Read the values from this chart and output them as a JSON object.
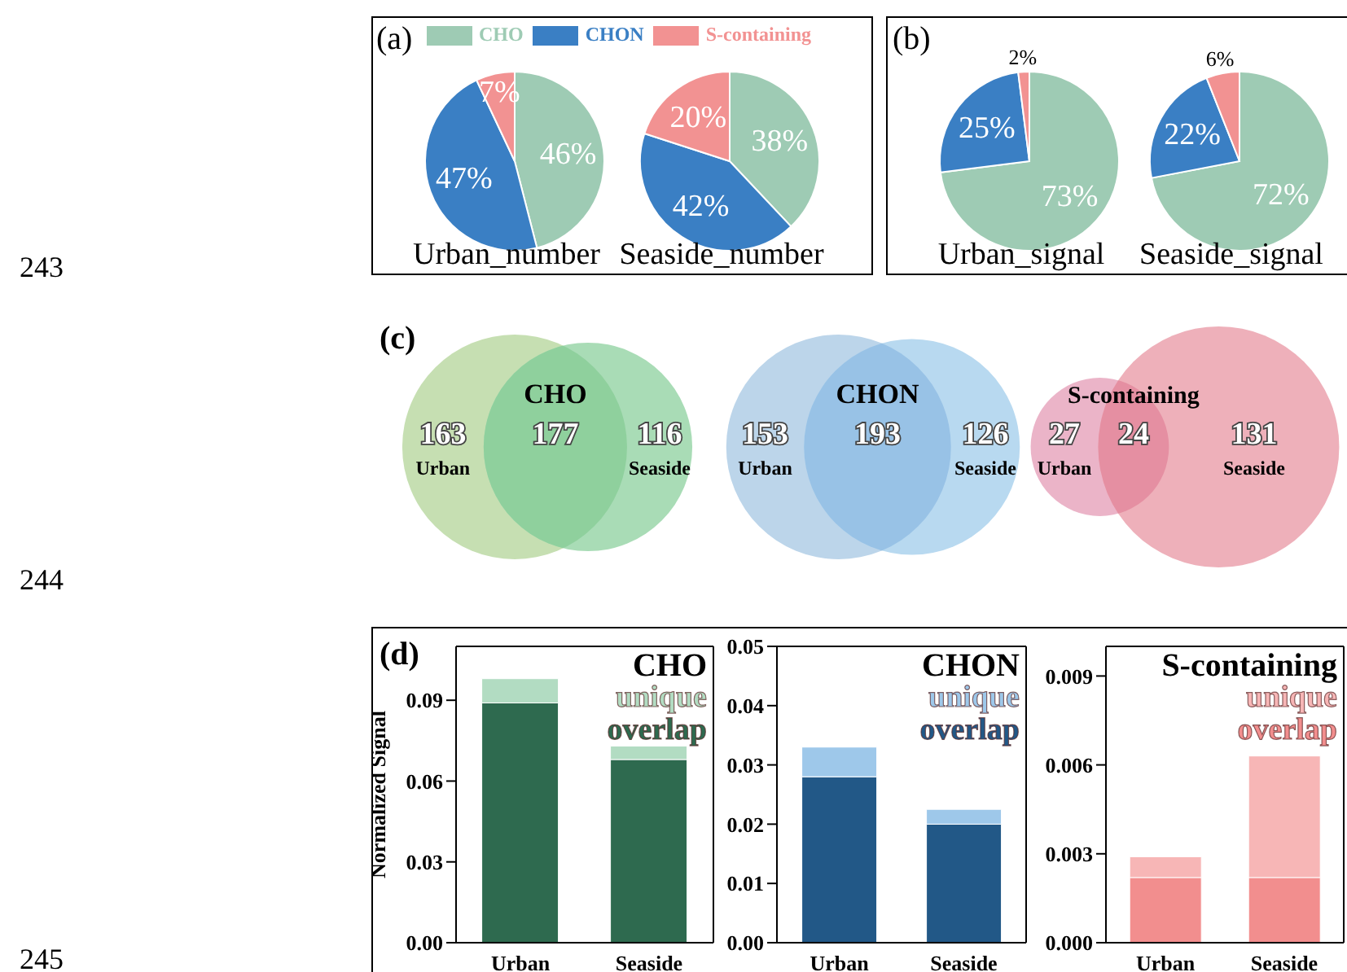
{
  "chart_data": [
    {
      "type": "pie",
      "title": "Urban_number",
      "categories": [
        "CHO",
        "CHON",
        "S-containing"
      ],
      "values": [
        46,
        47,
        7
      ],
      "value_labels": [
        "46%",
        "47%",
        "7%"
      ],
      "colors": [
        "#9ecbb4",
        "#3a7fc4",
        "#f29292"
      ],
      "legend": "top",
      "annotations": [
        "(a)",
        "243"
      ]
    },
    {
      "type": "pie",
      "title": "Seaside_number",
      "categories": [
        null,
        null,
        null
      ],
      "values": [
        38,
        42,
        20
      ],
      "value_labels": [
        "38%",
        "42%",
        "20%"
      ],
      "colors": [
        "#9ecbb4",
        "#3a7fc4",
        "#f29292"
      ]
    },
    {
      "type": "pie",
      "title": "Urban_signal",
      "categories": [
        null,
        null,
        null
      ],
      "values": [
        73,
        25,
        2
      ],
      "value_labels": [
        "73%",
        "25%",
        "2%"
      ],
      "colors": [
        "#9ecbb4",
        "#3a7fc4",
        "#f29292"
      ],
      "annotations": [
        "(b)"
      ]
    },
    {
      "type": "pie",
      "title": "Seaside_signal",
      "categories": [
        null,
        null,
        null
      ],
      "values": [
        72,
        22,
        6
      ],
      "value_labels": [
        "72%",
        "22%",
        "6%"
      ],
      "colors": [
        "#9ecbb4",
        "#3a7fc4",
        "#f29292"
      ]
    },
    {
      "type": "other",
      "title": "CHO",
      "categories": [
        "Urban",
        null,
        "Seaside"
      ],
      "values": [
        163,
        177,
        116
      ],
      "data_labels": true,
      "colors": [
        "#c6dfb2",
        "#8fd09d",
        "#a9dcb6"
      ],
      "annotations": [
        "(c)",
        "244"
      ]
    },
    {
      "type": "other",
      "title": "CHON",
      "categories": [
        "Urban",
        null,
        "Seaside"
      ],
      "values": [
        153,
        193,
        126
      ],
      "data_labels": true,
      "colors": [
        "#bcd5ea",
        "#98c2e6",
        "#b8d9f0"
      ]
    },
    {
      "type": "other",
      "title": "S-containing",
      "categories": [
        "Urban",
        null,
        "Seaside"
      ],
      "values": [
        27,
        24,
        131
      ],
      "data_labels": true,
      "colors": [
        "#ebb4c8",
        "#e58fa2",
        "#eeb0ba"
      ]
    },
    {
      "type": "bar",
      "title": "CHO",
      "ylabel": "Normalized Signal",
      "categories": [
        "Urban",
        "Seaside"
      ],
      "stacked": true,
      "legend": "top right",
      "ylim": [
        0,
        0.11
      ],
      "yticks": [
        {
          "value": 0,
          "label": "0.00"
        },
        {
          "value": 0.03,
          "label": "0.03"
        },
        {
          "value": 0.06,
          "label": "0.06"
        },
        {
          "value": 0.09,
          "label": "0.09"
        }
      ],
      "series": [
        {
          "name": "overlap",
          "color": "#2e6a4f",
          "values": [
            0.089,
            0.068
          ]
        },
        {
          "name": "unique",
          "color": "#b2dcc2",
          "values": [
            0.009,
            0.005
          ]
        }
      ],
      "annotations": [
        "(d)",
        "245"
      ]
    },
    {
      "type": "bar",
      "title": "CHON",
      "categories": [
        "Urban",
        "Seaside"
      ],
      "stacked": true,
      "legend": "top right",
      "ylim": [
        0,
        0.05
      ],
      "yticks": [
        {
          "value": 0,
          "label": "0.00"
        },
        {
          "value": 0.01,
          "label": "0.01"
        },
        {
          "value": 0.02,
          "label": "0.02"
        },
        {
          "value": 0.03,
          "label": "0.03"
        },
        {
          "value": 0.04,
          "label": "0.04"
        },
        {
          "value": 0.05,
          "label": "0.05"
        }
      ],
      "series": [
        {
          "name": "overlap",
          "color": "#225887",
          "values": [
            0.028,
            0.02
          ]
        },
        {
          "name": "unique",
          "color": "#9ec8ea",
          "values": [
            0.005,
            0.0025
          ]
        }
      ]
    },
    {
      "type": "bar",
      "title": "S-containing",
      "categories": [
        "Urban",
        "Seaside"
      ],
      "stacked": true,
      "legend": "top right",
      "ylim": [
        0,
        0.01
      ],
      "yticks": [
        {
          "value": 0,
          "label": "0.000"
        },
        {
          "value": 0.003,
          "label": "0.003"
        },
        {
          "value": 0.006,
          "label": "0.006"
        },
        {
          "value": 0.009,
          "label": "0.009"
        }
      ],
      "series": [
        {
          "name": "overlap",
          "color": "#f28e8e",
          "values": [
            0.0022,
            0.0022
          ]
        },
        {
          "name": "unique",
          "color": "#f7b6b6",
          "values": [
            0.0007,
            0.0041
          ]
        }
      ]
    }
  ]
}
